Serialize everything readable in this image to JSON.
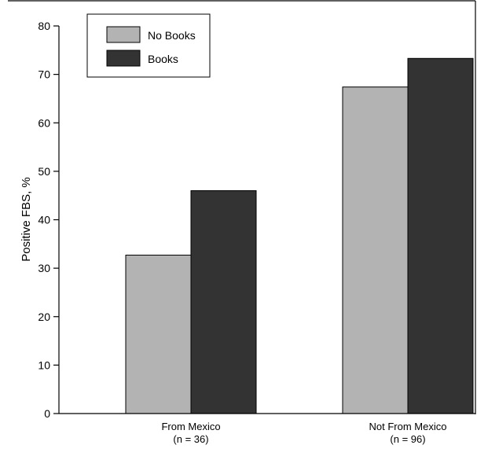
{
  "chart_data": {
    "type": "bar",
    "title": "",
    "xlabel": "",
    "ylabel": "Positive FBS, %",
    "ylim": [
      0,
      80
    ],
    "yticks": [
      0,
      10,
      20,
      30,
      40,
      50,
      60,
      70,
      80
    ],
    "categories": [
      {
        "name": "From Mexico",
        "n": "(n = 36)"
      },
      {
        "name": "Not From Mexico",
        "n": "(n = 96)"
      }
    ],
    "series": [
      {
        "name": "No Books",
        "color": "#b3b3b3",
        "values": [
          32.7,
          67.4
        ]
      },
      {
        "name": "Books",
        "color": "#333333",
        "values": [
          46.0,
          73.3
        ]
      }
    ],
    "legend": {
      "position": "top-left"
    },
    "grid": false
  }
}
